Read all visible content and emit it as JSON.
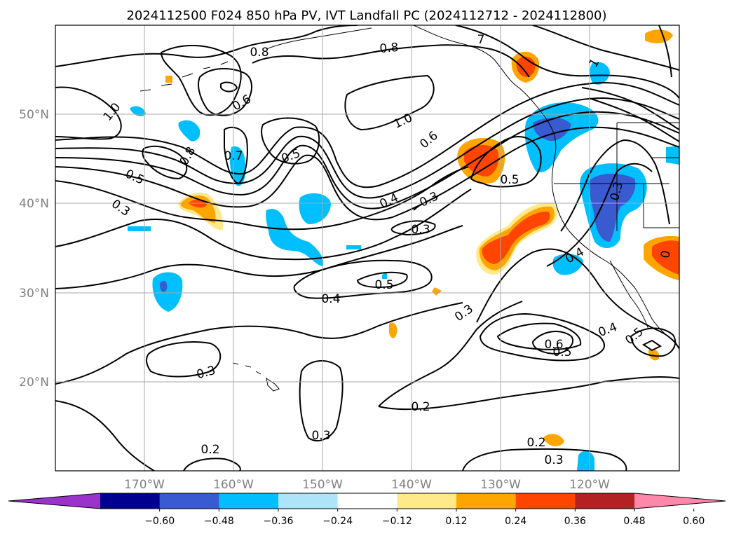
{
  "title": "2024112500 F024 850 hPa PV, IVT Landfall PC (2024112712 - 2024112800)",
  "map": {
    "lon_range": [
      -180,
      -110
    ],
    "lat_range": [
      10,
      60
    ],
    "lon_ticks": [
      "170°W",
      "160°W",
      "150°W",
      "140°W",
      "130°W",
      "120°W"
    ],
    "lat_ticks": [
      "50°N",
      "40°N",
      "30°N",
      "20°N"
    ],
    "grid": true,
    "contour_label_values": [
      "0.8",
      "0.8",
      "0.6",
      "1.0",
      "0.8",
      "0.7",
      "0.5",
      "0.5",
      "0.3",
      "0.4",
      "0.3",
      "0.6",
      "1.0",
      "0.5",
      "0.3",
      "0.4",
      "0.5",
      "0.4",
      "0.3",
      "0.3",
      "0.6",
      "0.5",
      "0.4",
      "0.5",
      "0.2",
      "0.3",
      "0.2",
      "0.2",
      "0.3",
      "0.3",
      "7",
      "1",
      "0"
    ]
  },
  "colorbar": {
    "tick_labels": [
      "−0.60",
      "−0.48",
      "−0.36",
      "−0.24",
      "−0.12",
      "0.12",
      "0.24",
      "0.36",
      "0.48",
      "0.60"
    ],
    "colors": [
      "#9933cc",
      "#000090",
      "#3a5ad0",
      "#00bfff",
      "#aee4fa",
      "#ffffff",
      "#ffe98a",
      "#ffa500",
      "#ff4500",
      "#b22222",
      "#ff88aa"
    ],
    "extend": "both"
  }
}
